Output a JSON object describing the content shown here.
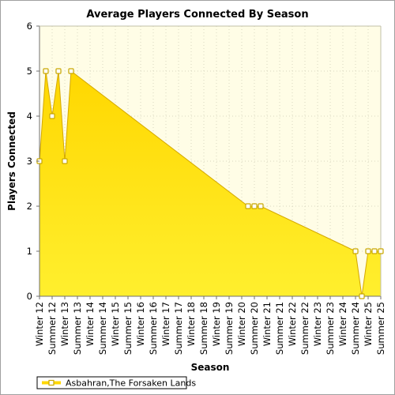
{
  "chart_data": {
    "type": "area",
    "title": "Average Players Connected By Season",
    "xlabel": "Season",
    "ylabel": "Players Connected",
    "ylim": [
      0,
      6
    ],
    "yticks": [
      0,
      1,
      2,
      3,
      4,
      5,
      6
    ],
    "grid": true,
    "legend_position": "bottom-left",
    "categories": [
      "Winter 12",
      "Summer 12",
      "Winter 13",
      "Summer 13",
      "Winter 14",
      "Summer 14",
      "Winter 15",
      "Summer 15",
      "Winter 16",
      "Summer 16",
      "Winter 17",
      "Summer 17",
      "Winter 18",
      "Summer 18",
      "Winter 19",
      "Summer 19",
      "Winter 20",
      "Summer 20",
      "Winter 21",
      "Summer 21",
      "Winter 22",
      "Summer 22",
      "Winter 23",
      "Summer 23",
      "Winter 24",
      "Summer 24",
      "Winter 25",
      "Summer 25"
    ],
    "series": [
      {
        "name": "Asbahran,The Forsaken Lands",
        "color": "#ffd700",
        "points": [
          {
            "x": 0.0,
            "y": 3
          },
          {
            "x": 0.5,
            "y": 5
          },
          {
            "x": 1.0,
            "y": 4
          },
          {
            "x": 1.5,
            "y": 5
          },
          {
            "x": 2.0,
            "y": 3
          },
          {
            "x": 2.5,
            "y": 5
          },
          {
            "x": 16.5,
            "y": 2
          },
          {
            "x": 17.0,
            "y": 2
          },
          {
            "x": 17.5,
            "y": 2
          },
          {
            "x": 25.0,
            "y": 1
          },
          {
            "x": 25.5,
            "y": 0
          },
          {
            "x": 26.0,
            "y": 1
          },
          {
            "x": 26.5,
            "y": 1
          },
          {
            "x": 27.0,
            "y": 1
          }
        ]
      }
    ]
  }
}
